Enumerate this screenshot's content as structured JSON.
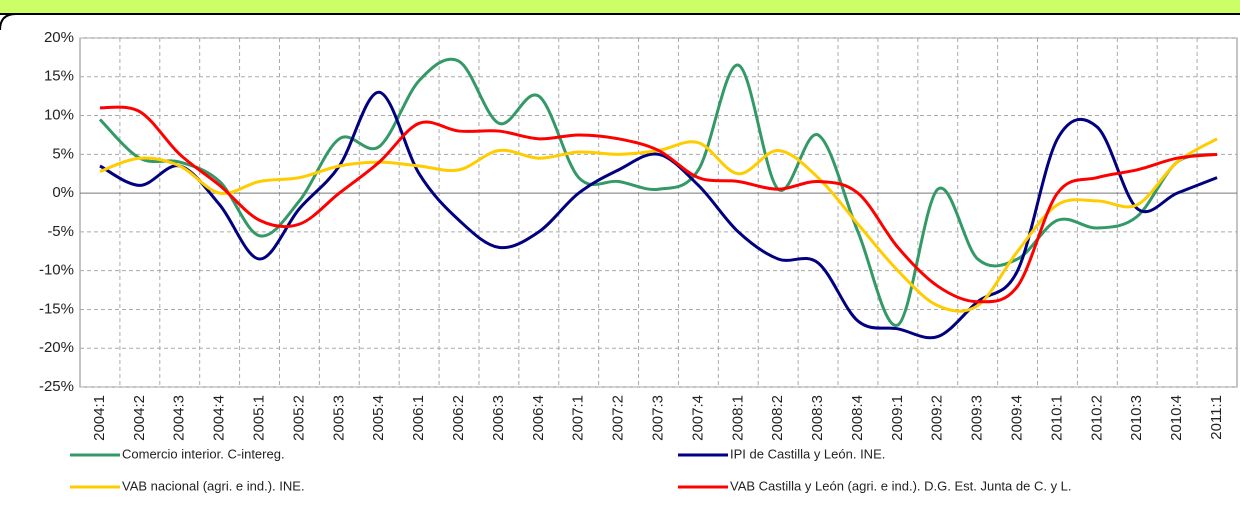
{
  "chart_data": {
    "type": "line",
    "categories": [
      "2004:1",
      "2004:2",
      "2004:3",
      "2004:4",
      "2005:1",
      "2005:2",
      "2005:3",
      "2005:4",
      "2006:1",
      "2006:2",
      "2006:3",
      "2006:4",
      "2007:1",
      "2007:2",
      "2007:3",
      "2007:4",
      "2008:1",
      "2008:2",
      "2008:3",
      "2008:4",
      "2009:1",
      "2009:2",
      "2009:3",
      "2009:4",
      "2010:1",
      "2010:2",
      "2010:3",
      "2010:4",
      "2011:1"
    ],
    "series": [
      {
        "name": "Comercio interior. C-intereg.",
        "color": "#339966",
        "values": [
          9.5,
          4.5,
          4,
          1.5,
          -5.5,
          -1,
          7,
          6,
          14.5,
          17,
          9,
          12.5,
          2,
          1.5,
          0.5,
          3,
          16.5,
          0.5,
          7.5,
          -5,
          -17,
          0.5,
          -8.5,
          -8.5,
          -3.5,
          -4.5,
          -3,
          4,
          5
        ]
      },
      {
        "name": "IPI de Castilla y León. INE.",
        "color": "#000080",
        "values": [
          3.5,
          1,
          3.5,
          -1.5,
          -8.5,
          -2,
          3.5,
          13,
          2.5,
          -3.5,
          -7,
          -5,
          0,
          3,
          5,
          1,
          -5,
          -8.5,
          -9,
          -16.5,
          -17.5,
          -18.5,
          -14,
          -10,
          7,
          8.5,
          -2,
          0,
          2
        ]
      },
      {
        "name": "VAB nacional (agri. e ind.). INE.",
        "color": "#ffcc00",
        "values": [
          2.8,
          4.5,
          3.5,
          0,
          1.5,
          2,
          3.5,
          4,
          3.5,
          3,
          5.5,
          4.5,
          5.3,
          5,
          5.5,
          6.5,
          2.5,
          5.5,
          2,
          -4,
          -10,
          -14.5,
          -14.5,
          -7.5,
          -1.5,
          -1,
          -1.5,
          4,
          7
        ]
      },
      {
        "name": "VAB Castilla y León (agri. e ind.). D.G. Est. Junta de C. y L.",
        "color": "#ff0000",
        "values": [
          11,
          10.5,
          5,
          1,
          -3.5,
          -4,
          0,
          4,
          9,
          8,
          8,
          7,
          7.5,
          7,
          5.5,
          2,
          1.5,
          0.5,
          1.5,
          0,
          -7,
          -12,
          -14,
          -12,
          0,
          2,
          3,
          4.5,
          5
        ]
      }
    ],
    "ylim": [
      -25,
      20
    ],
    "yticks": [
      {
        "value": -25,
        "label": "-25%"
      },
      {
        "value": -20,
        "label": "-20%"
      },
      {
        "value": -15,
        "label": "-15%"
      },
      {
        "value": -10,
        "label": "-10%"
      },
      {
        "value": -5,
        "label": "-5%"
      },
      {
        "value": 0,
        "label": "0%"
      },
      {
        "value": 5,
        "label": "5%"
      },
      {
        "value": 10,
        "label": "10%"
      },
      {
        "value": 15,
        "label": "15%"
      },
      {
        "value": 20,
        "label": "20%"
      }
    ],
    "grid": true
  }
}
